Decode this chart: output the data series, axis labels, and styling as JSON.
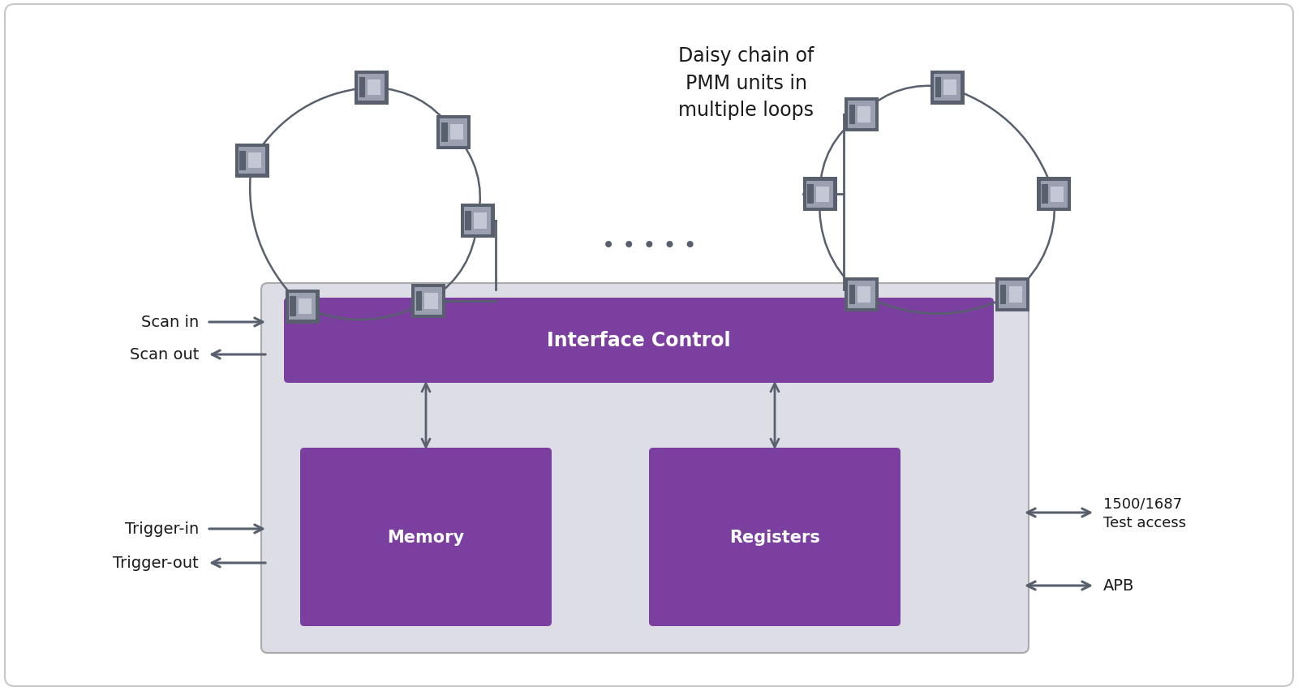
{
  "bg_color": "#ffffff",
  "border_color": "#c8c8c8",
  "main_box_color": "#dddde5",
  "purple_color": "#7b3fa0",
  "pmm_box_color": "#58606e",
  "pmm_inner_color": "#9aa0b0",
  "pmm_window_color": "#c4c8d4",
  "arrow_color": "#58606e",
  "text_color": "#1a1a1a",
  "white_text": "#ffffff",
  "daisy_text": "Daisy chain of\nPMM units in\nmultiple loops",
  "interface_text": "Interface Control",
  "memory_text": "Memory",
  "registers_text": "Registers",
  "scan_in": "Scan in",
  "scan_out": "Scan out",
  "trigger_in": "Trigger-in",
  "trigger_out": "Trigger-out",
  "test_access": "1500/1687\nTest access",
  "apb": "APB",
  "dots": "• • • • •"
}
